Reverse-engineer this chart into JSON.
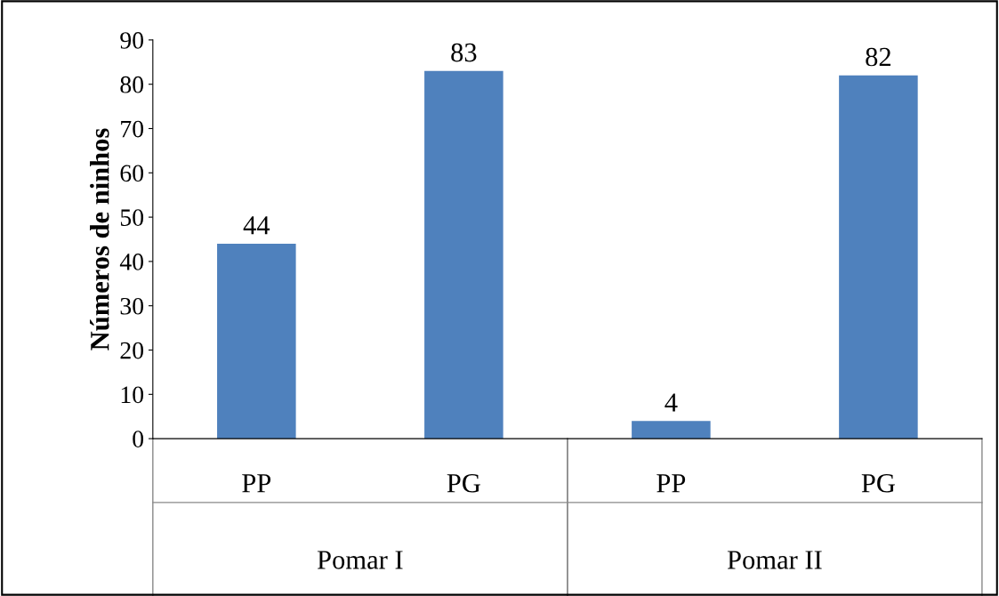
{
  "chart_data": {
    "type": "bar",
    "ylabel": "Números de ninhos",
    "categories": [
      "PP",
      "PG",
      "PP",
      "PG"
    ],
    "values": [
      44,
      83,
      4,
      82
    ],
    "color": "#4f81bd",
    "ylim": [
      0,
      90
    ],
    "yticks": [
      0,
      10,
      20,
      30,
      40,
      50,
      60,
      70,
      80,
      90
    ],
    "data_labels": true,
    "annotations": [
      "Pomar I",
      "Pomar II"
    ]
  }
}
